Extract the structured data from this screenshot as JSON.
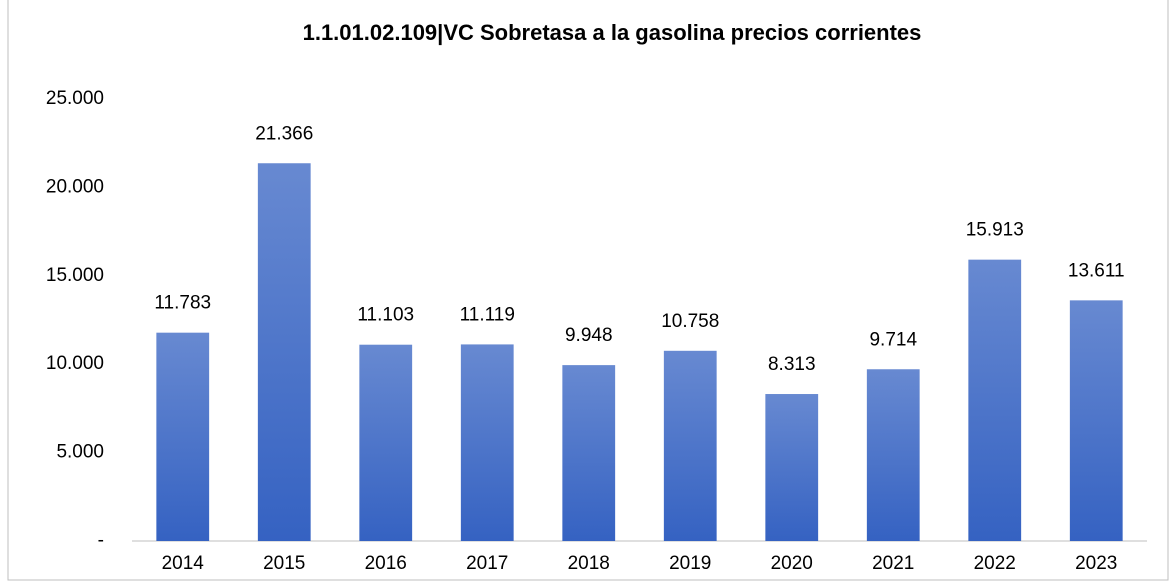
{
  "chart_data": {
    "type": "bar",
    "title": "1.1.01.02.109|VC Sobretasa a la gasolina  precios corrientes",
    "categories": [
      "2014",
      "2015",
      "2016",
      "2017",
      "2018",
      "2019",
      "2020",
      "2021",
      "2022",
      "2023"
    ],
    "values": [
      11783,
      21366,
      11103,
      11119,
      9948,
      10758,
      8313,
      9714,
      15913,
      13611
    ],
    "value_labels": [
      "11.783",
      "21.366",
      "11.103",
      "11.119",
      "9.948",
      "10.758",
      "8.313",
      "9.714",
      "15.913",
      "13.611"
    ],
    "color": "#3562c2",
    "ylim": [
      0,
      25000
    ],
    "yticks": [
      {
        "value": 0,
        "label": "-"
      },
      {
        "value": 5000,
        "label": "5.000"
      },
      {
        "value": 10000,
        "label": "10.000"
      },
      {
        "value": 15000,
        "label": "15.000"
      },
      {
        "value": 20000,
        "label": "20.000"
      },
      {
        "value": 25000,
        "label": "25.000"
      }
    ],
    "grid": false
  }
}
